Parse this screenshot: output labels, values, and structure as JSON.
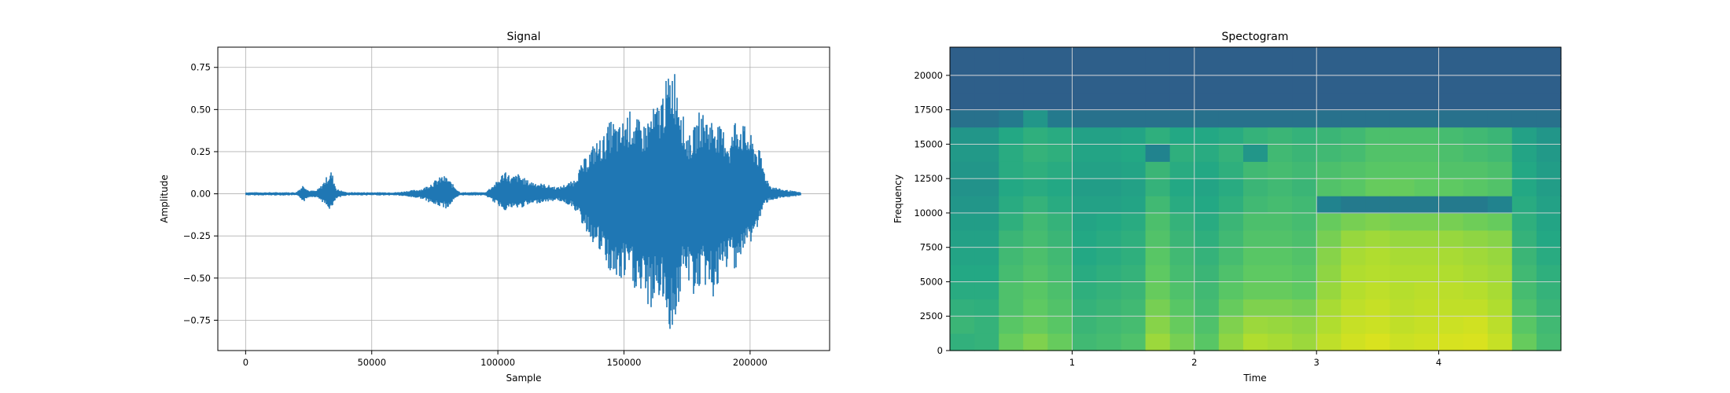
{
  "chart_data": [
    {
      "type": "line",
      "title": "Signal",
      "xlabel": "Sample",
      "ylabel": "Amplitude",
      "xlim": [
        -11025,
        231525
      ],
      "ylim": [
        -0.93,
        0.87
      ],
      "grid": true,
      "color": "#1f77b4",
      "xticks": [
        0,
        50000,
        100000,
        150000,
        200000
      ],
      "xtick_labels": [
        "0",
        "50000",
        "100000",
        "150000",
        "200000"
      ],
      "yticks": [
        0.75,
        0.5,
        0.25,
        0.0,
        -0.25,
        -0.5,
        -0.75
      ],
      "ytick_labels": [
        "0.75",
        "0.50",
        "0.25",
        "0.00",
        "−0.25",
        "−0.50",
        "−0.75"
      ],
      "envelope": {
        "sample": [
          0,
          20000,
          22000,
          23000,
          25000,
          28000,
          30000,
          32000,
          34000,
          36000,
          40000,
          60000,
          70000,
          75000,
          78000,
          80000,
          82000,
          85000,
          95000,
          100000,
          103000,
          105000,
          108000,
          112000,
          118000,
          124000,
          130000,
          134000,
          138000,
          142000,
          145000,
          148000,
          152000,
          155000,
          158000,
          161000,
          164000,
          166000,
          168000,
          169500,
          171000,
          172500,
          174000,
          176000,
          178000,
          180000,
          182000,
          184000,
          186000,
          188000,
          190000,
          192000,
          194000,
          196000,
          198000,
          200000,
          202000,
          204000,
          206000,
          208000,
          212000,
          216000,
          220000
        ],
        "upper": [
          0.01,
          0.01,
          0.04,
          0.06,
          0.02,
          0.02,
          0.05,
          0.1,
          0.14,
          0.03,
          0.01,
          0.01,
          0.03,
          0.08,
          0.11,
          0.1,
          0.06,
          0.01,
          0.01,
          0.08,
          0.15,
          0.1,
          0.12,
          0.08,
          0.06,
          0.04,
          0.08,
          0.2,
          0.3,
          0.35,
          0.45,
          0.4,
          0.5,
          0.45,
          0.42,
          0.5,
          0.55,
          0.65,
          0.72,
          0.79,
          0.7,
          0.6,
          0.4,
          0.35,
          0.4,
          0.5,
          0.48,
          0.45,
          0.46,
          0.4,
          0.38,
          0.3,
          0.46,
          0.45,
          0.4,
          0.36,
          0.3,
          0.25,
          0.12,
          0.05,
          0.03,
          0.02,
          0.01
        ],
        "lower": [
          -0.01,
          -0.01,
          -0.03,
          -0.05,
          -0.02,
          -0.02,
          -0.04,
          -0.08,
          -0.1,
          -0.03,
          -0.01,
          -0.01,
          -0.03,
          -0.07,
          -0.08,
          -0.09,
          -0.05,
          -0.01,
          -0.01,
          -0.07,
          -0.1,
          -0.09,
          -0.09,
          -0.07,
          -0.05,
          -0.04,
          -0.08,
          -0.2,
          -0.3,
          -0.4,
          -0.5,
          -0.55,
          -0.5,
          -0.6,
          -0.65,
          -0.7,
          -0.62,
          -0.72,
          -0.8,
          -0.86,
          -0.72,
          -0.6,
          -0.5,
          -0.55,
          -0.62,
          -0.58,
          -0.55,
          -0.6,
          -0.63,
          -0.55,
          -0.48,
          -0.4,
          -0.45,
          -0.4,
          -0.35,
          -0.3,
          -0.25,
          -0.15,
          -0.06,
          -0.04,
          -0.03,
          -0.02,
          -0.01
        ]
      }
    },
    {
      "type": "heatmap",
      "title": "Spectogram",
      "xlabel": "Time",
      "ylabel": "Frequency",
      "xlim": [
        0.0,
        5.0
      ],
      "ylim": [
        0,
        22050
      ],
      "grid": true,
      "xticks": [
        1,
        2,
        3,
        4
      ],
      "xtick_labels": [
        "1",
        "2",
        "3",
        "4"
      ],
      "yticks": [
        0,
        2500,
        5000,
        7500,
        10000,
        12500,
        15000,
        17500,
        20000
      ],
      "ytick_labels": [
        "0",
        "2500",
        "5000",
        "7500",
        "10000",
        "12500",
        "15000",
        "17500",
        "20000"
      ],
      "colormap": [
        "#2e5f8a",
        "#21838e",
        "#23a884",
        "#5ec962",
        "#b0dd2f",
        "#e6e419"
      ],
      "time_bins": [
        0.1,
        0.3,
        0.5,
        0.7,
        0.9,
        1.1,
        1.3,
        1.5,
        1.7,
        1.9,
        2.1,
        2.3,
        2.5,
        2.7,
        2.9,
        3.1,
        3.3,
        3.5,
        3.7,
        3.9,
        4.1,
        4.3,
        4.5,
        4.7,
        4.9
      ],
      "freq_bins": [
        625,
        1875,
        3125,
        4375,
        5625,
        6875,
        8125,
        9375,
        10625,
        11875,
        13125,
        14375,
        15625,
        16875,
        18125,
        19375,
        20625,
        21875
      ],
      "intensity": [
        [
          0.45,
          0.48,
          0.45,
          0.42,
          0.4,
          0.38,
          0.36,
          0.34,
          0.3,
          0.28,
          0.3,
          0.32,
          0.3,
          0.1,
          0.0,
          0.0,
          0.0,
          0.0
        ],
        [
          0.46,
          0.46,
          0.44,
          0.42,
          0.4,
          0.38,
          0.36,
          0.34,
          0.3,
          0.28,
          0.3,
          0.32,
          0.3,
          0.1,
          0.0,
          0.0,
          0.0,
          0.0
        ],
        [
          0.62,
          0.58,
          0.55,
          0.55,
          0.52,
          0.5,
          0.48,
          0.44,
          0.42,
          0.4,
          0.42,
          0.42,
          0.4,
          0.15,
          0.0,
          0.0,
          0.0,
          0.0
        ],
        [
          0.68,
          0.62,
          0.6,
          0.58,
          0.56,
          0.54,
          0.52,
          0.5,
          0.46,
          0.42,
          0.44,
          0.46,
          0.44,
          0.3,
          0.0,
          0.0,
          0.0,
          0.0
        ],
        [
          0.62,
          0.58,
          0.56,
          0.54,
          0.52,
          0.5,
          0.48,
          0.46,
          0.42,
          0.4,
          0.42,
          0.44,
          0.42,
          0.15,
          0.0,
          0.0,
          0.0,
          0.0
        ],
        [
          0.5,
          0.48,
          0.46,
          0.44,
          0.42,
          0.4,
          0.4,
          0.38,
          0.36,
          0.34,
          0.36,
          0.38,
          0.36,
          0.1,
          0.0,
          0.0,
          0.0,
          0.0
        ],
        [
          0.52,
          0.5,
          0.48,
          0.46,
          0.44,
          0.42,
          0.42,
          0.4,
          0.36,
          0.34,
          0.36,
          0.38,
          0.36,
          0.1,
          0.0,
          0.0,
          0.0,
          0.0
        ],
        [
          0.55,
          0.52,
          0.5,
          0.48,
          0.46,
          0.44,
          0.44,
          0.42,
          0.38,
          0.36,
          0.38,
          0.4,
          0.38,
          0.1,
          0.0,
          0.0,
          0.0,
          0.0
        ],
        [
          0.75,
          0.7,
          0.66,
          0.62,
          0.6,
          0.58,
          0.56,
          0.54,
          0.5,
          0.46,
          0.48,
          0.2,
          0.44,
          0.1,
          0.0,
          0.0,
          0.0,
          0.0
        ],
        [
          0.66,
          0.62,
          0.58,
          0.55,
          0.52,
          0.5,
          0.48,
          0.46,
          0.42,
          0.4,
          0.42,
          0.44,
          0.4,
          0.1,
          0.0,
          0.0,
          0.0,
          0.0
        ],
        [
          0.58,
          0.55,
          0.52,
          0.5,
          0.48,
          0.46,
          0.44,
          0.42,
          0.4,
          0.38,
          0.4,
          0.42,
          0.4,
          0.1,
          0.0,
          0.0,
          0.0,
          0.0
        ],
        [
          0.72,
          0.68,
          0.62,
          0.58,
          0.55,
          0.52,
          0.5,
          0.48,
          0.44,
          0.42,
          0.44,
          0.46,
          0.42,
          0.1,
          0.0,
          0.0,
          0.0,
          0.0
        ],
        [
          0.8,
          0.75,
          0.68,
          0.62,
          0.6,
          0.58,
          0.56,
          0.54,
          0.5,
          0.48,
          0.5,
          0.3,
          0.46,
          0.1,
          0.0,
          0.0,
          0.0,
          0.0
        ],
        [
          0.78,
          0.74,
          0.68,
          0.62,
          0.6,
          0.58,
          0.56,
          0.54,
          0.52,
          0.5,
          0.52,
          0.5,
          0.48,
          0.1,
          0.0,
          0.0,
          0.0,
          0.0
        ],
        [
          0.75,
          0.72,
          0.66,
          0.6,
          0.58,
          0.56,
          0.54,
          0.52,
          0.5,
          0.48,
          0.5,
          0.48,
          0.46,
          0.1,
          0.0,
          0.0,
          0.0,
          0.0
        ],
        [
          0.85,
          0.8,
          0.78,
          0.74,
          0.72,
          0.7,
          0.66,
          0.62,
          0.2,
          0.56,
          0.54,
          0.5,
          0.48,
          0.1,
          0.0,
          0.0,
          0.0,
          0.0
        ],
        [
          0.92,
          0.88,
          0.85,
          0.82,
          0.8,
          0.78,
          0.74,
          0.66,
          0.15,
          0.58,
          0.56,
          0.52,
          0.5,
          0.1,
          0.0,
          0.0,
          0.0,
          0.0
        ],
        [
          0.95,
          0.9,
          0.88,
          0.85,
          0.82,
          0.8,
          0.76,
          0.68,
          0.15,
          0.62,
          0.58,
          0.56,
          0.54,
          0.1,
          0.0,
          0.0,
          0.0,
          0.0
        ],
        [
          0.9,
          0.86,
          0.84,
          0.82,
          0.8,
          0.78,
          0.74,
          0.66,
          0.15,
          0.62,
          0.58,
          0.56,
          0.54,
          0.1,
          0.0,
          0.0,
          0.0,
          0.0
        ],
        [
          0.92,
          0.88,
          0.86,
          0.84,
          0.8,
          0.78,
          0.74,
          0.66,
          0.15,
          0.6,
          0.58,
          0.56,
          0.54,
          0.1,
          0.0,
          0.0,
          0.0,
          0.0
        ],
        [
          0.94,
          0.9,
          0.86,
          0.84,
          0.8,
          0.78,
          0.74,
          0.66,
          0.15,
          0.6,
          0.56,
          0.54,
          0.52,
          0.1,
          0.0,
          0.0,
          0.0,
          0.0
        ],
        [
          0.95,
          0.92,
          0.86,
          0.82,
          0.78,
          0.76,
          0.72,
          0.64,
          0.15,
          0.58,
          0.56,
          0.52,
          0.5,
          0.1,
          0.0,
          0.0,
          0.0,
          0.0
        ],
        [
          0.88,
          0.84,
          0.8,
          0.78,
          0.76,
          0.74,
          0.7,
          0.62,
          0.2,
          0.56,
          0.54,
          0.5,
          0.48,
          0.1,
          0.0,
          0.0,
          0.0,
          0.0
        ],
        [
          0.62,
          0.58,
          0.55,
          0.52,
          0.5,
          0.48,
          0.46,
          0.44,
          0.42,
          0.4,
          0.4,
          0.38,
          0.36,
          0.1,
          0.0,
          0.0,
          0.0,
          0.0
        ],
        [
          0.52,
          0.5,
          0.48,
          0.46,
          0.44,
          0.42,
          0.4,
          0.38,
          0.36,
          0.34,
          0.34,
          0.32,
          0.3,
          0.1,
          0.0,
          0.0,
          0.0,
          0.0
        ]
      ]
    }
  ]
}
